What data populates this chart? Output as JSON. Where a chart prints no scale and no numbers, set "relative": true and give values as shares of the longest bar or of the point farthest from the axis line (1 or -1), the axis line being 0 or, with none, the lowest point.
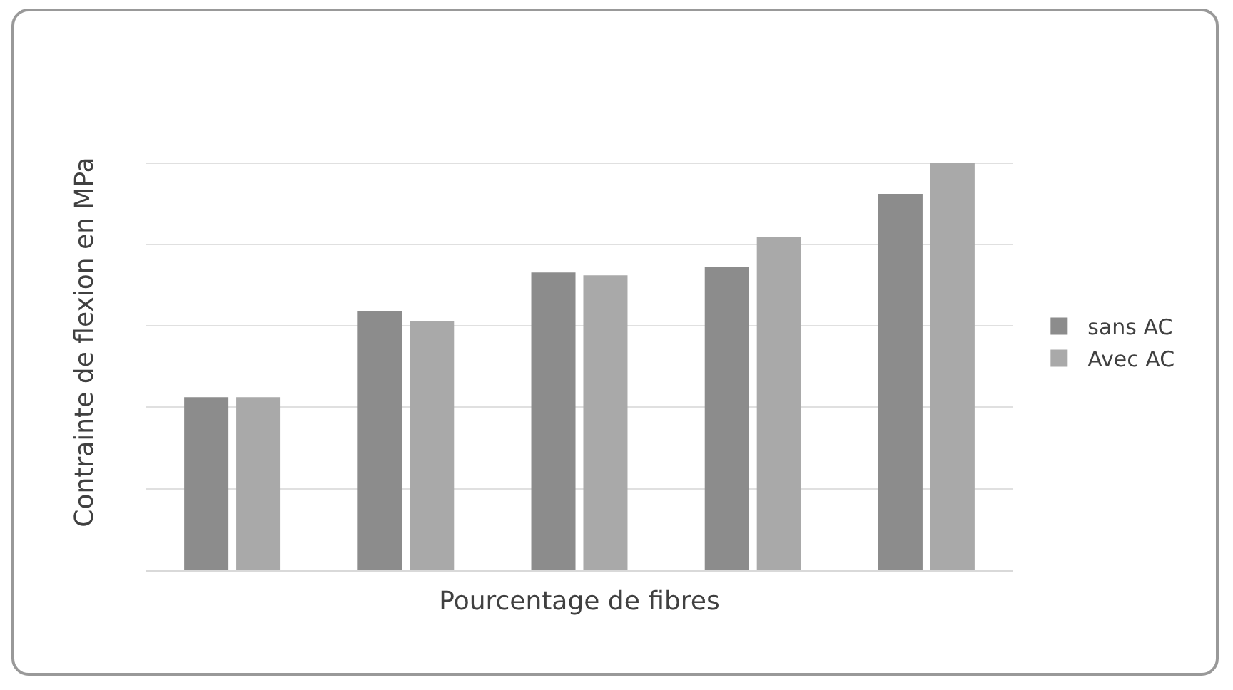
{
  "chart_data": {
    "type": "bar",
    "relative": true,
    "categories": [
      null,
      null,
      null,
      null,
      null
    ],
    "xlabel": "Pourcentage de fibres",
    "ylabel": "Contrainte de flexion en MPa",
    "series": [
      {
        "name": "sans AC",
        "color": "#8c8c8c",
        "values": [
          0.425,
          0.636,
          0.731,
          0.745,
          0.924
        ]
      },
      {
        "name": "Avec AC",
        "color": "#a9a9a9",
        "values": [
          0.425,
          0.611,
          0.724,
          0.818,
          1
        ]
      }
    ],
    "grid": true,
    "legend": "right"
  }
}
